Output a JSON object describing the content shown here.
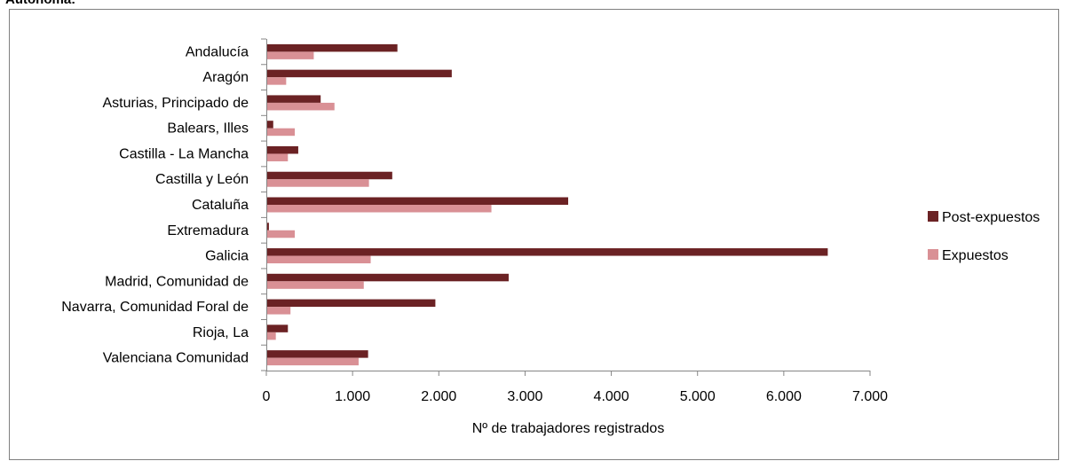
{
  "header_fragment": "Autónoma:",
  "chart_data": {
    "type": "bar",
    "orientation": "horizontal",
    "categories": [
      "Andalucía",
      "Aragón",
      "Asturias, Principado de",
      "Balears, Illes",
      "Castilla - La Mancha",
      "Castilla y León",
      "Cataluña",
      "Extremadura",
      "Galicia",
      "Madrid, Comunidad de",
      "Navarra, Comunidad Foral de",
      "Rioja, La",
      "Valenciana Comunidad"
    ],
    "series": [
      {
        "name": "Post-expuestos",
        "color": "#6b2224",
        "values": [
          1520,
          2150,
          630,
          80,
          370,
          1460,
          3500,
          30,
          6510,
          2810,
          1960,
          250,
          1180
        ]
      },
      {
        "name": "Expuestos",
        "color": "#d99095",
        "values": [
          550,
          230,
          790,
          330,
          250,
          1190,
          2610,
          330,
          1210,
          1130,
          280,
          110,
          1070
        ]
      }
    ],
    "xlabel": "Nº de trabajadores registrados",
    "ylabel": "",
    "xlim": [
      0,
      7000
    ],
    "xticks": [
      "0",
      "1.000",
      "2.000",
      "3.000",
      "4.000",
      "5.000",
      "6.000",
      "7.000"
    ],
    "grid": false,
    "legend_position": "right"
  }
}
